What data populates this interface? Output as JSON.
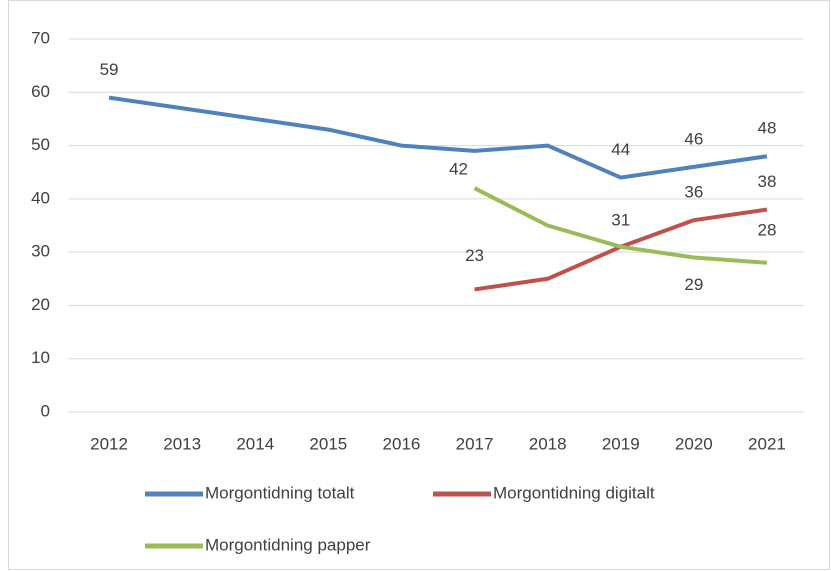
{
  "chart_data": {
    "type": "line",
    "categories": [
      "2012",
      "2013",
      "2014",
      "2015",
      "2016",
      "2017",
      "2018",
      "2019",
      "2020",
      "2021"
    ],
    "series": [
      {
        "name": "Morgontidning totalt",
        "color": "#4f81bd",
        "values": [
          59,
          57,
          55,
          53,
          50,
          49,
          50,
          44,
          46,
          48
        ],
        "data_labels": [
          0,
          7,
          8,
          9
        ]
      },
      {
        "name": "Morgontidning digitalt",
        "color": "#c0504d",
        "values": [
          null,
          null,
          null,
          null,
          null,
          23,
          25,
          31,
          36,
          38
        ],
        "data_labels": [
          5,
          7,
          8,
          9
        ]
      },
      {
        "name": "Morgontidning papper",
        "color": "#9bbb59",
        "values": [
          null,
          null,
          null,
          null,
          null,
          42,
          35,
          31,
          29,
          28
        ],
        "data_labels": [
          5,
          8,
          9
        ]
      }
    ],
    "ylim": [
      0,
      70
    ],
    "yticks": [
      0,
      10,
      20,
      30,
      40,
      50,
      60,
      70
    ],
    "grid": true,
    "legend": "bottom"
  }
}
